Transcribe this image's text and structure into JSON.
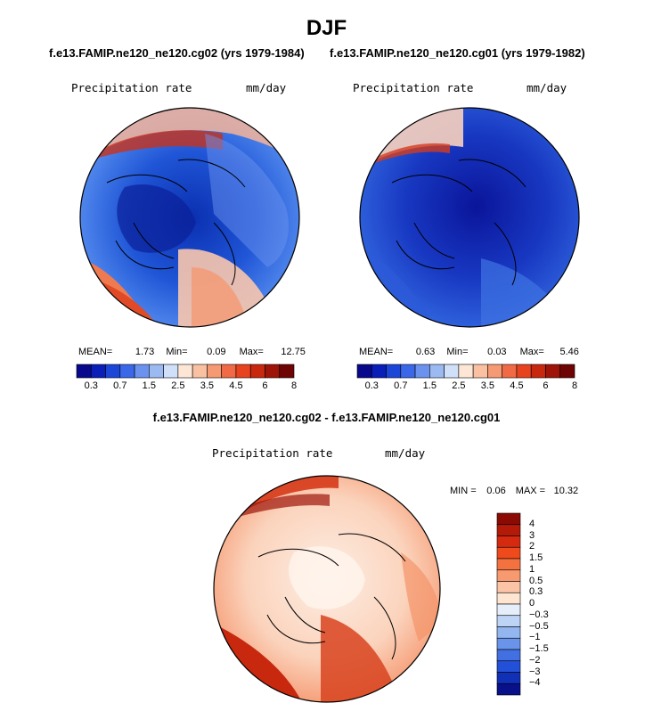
{
  "title": "DJF",
  "panel1": {
    "case": "f.e13.FAMIP.ne120_ne120.cg02 (yrs 1979-1984)",
    "variable": "Precipitation rate",
    "units": "mm/day",
    "mean_label": "MEAN=",
    "mean": "1.73",
    "min_label": "Min=",
    "min": "0.09",
    "max_label": "Max=",
    "max": "12.75"
  },
  "panel2": {
    "case": "f.e13.FAMIP.ne120_ne120.cg01 (yrs 1979-1982)",
    "variable": "Precipitation rate",
    "units": "mm/day",
    "mean_label": "MEAN=",
    "mean": "0.63",
    "min_label": "Min=",
    "min": "0.03",
    "max_label": "Max=",
    "max": "5.46"
  },
  "abs_colorbar": {
    "colors": [
      "#08088c",
      "#0a1fb8",
      "#1c46d8",
      "#3a68e8",
      "#6a92ee",
      "#9cbaf2",
      "#cfe0f8",
      "#fde6d6",
      "#f9c1a2",
      "#f59a72",
      "#f06a45",
      "#e8431f",
      "#c8280e",
      "#9e1408",
      "#6e0404"
    ],
    "labels": [
      "0.3",
      "0.7",
      "1.5",
      "2.5",
      "3.5",
      "4.5",
      "6",
      "8"
    ]
  },
  "diff": {
    "title": "f.e13.FAMIP.ne120_ne120.cg02 - f.e13.FAMIP.ne120_ne120.cg01",
    "variable": "Precipitation rate",
    "units": "mm/day",
    "min_label": "MIN =",
    "min": "0.06",
    "max_label": "MAX =",
    "max": "10.32"
  },
  "diff_colorbar": {
    "colors": [
      "#8c0a04",
      "#b31a08",
      "#d62a10",
      "#ef4a1c",
      "#f47240",
      "#f89a70",
      "#fbc4a6",
      "#fde5d2",
      "#e6eefa",
      "#bed4f6",
      "#93b6f0",
      "#6a94ea",
      "#4270e2",
      "#2250d8",
      "#1030b8",
      "#08108a"
    ],
    "labels": [
      "4",
      "3",
      "2",
      "1.5",
      "1",
      "0.5",
      "0.3",
      "0",
      "−0.3",
      "−0.5",
      "−1",
      "−1.5",
      "−2",
      "−3",
      "−4"
    ]
  }
}
